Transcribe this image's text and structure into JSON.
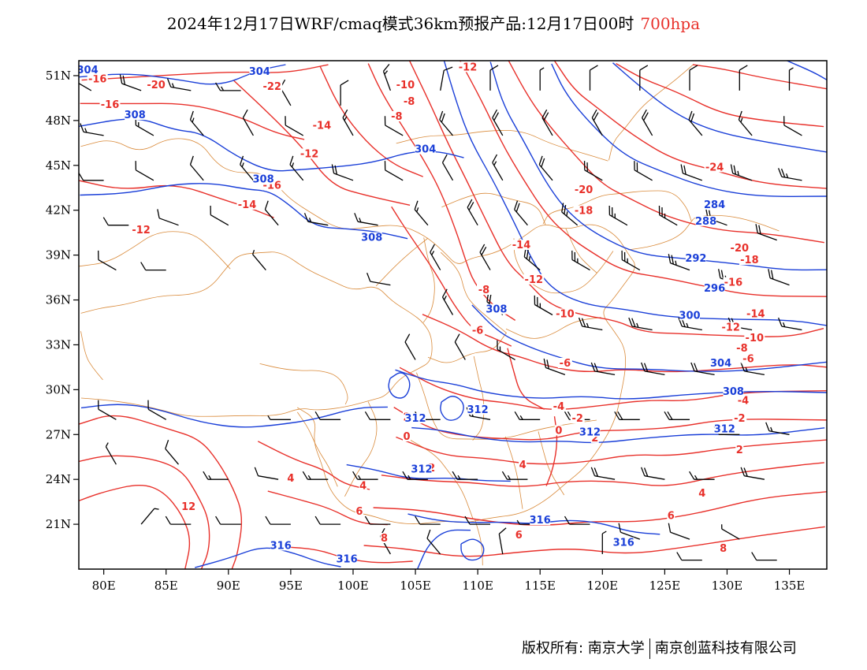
{
  "title": {
    "main": "2024年12月17日WRF/cmaq模式36km预报产品:12月17日00时",
    "level": "700hpa",
    "level_color": "#e8302a"
  },
  "map": {
    "lon_range": [
      78,
      138
    ],
    "lat_range": [
      18,
      52
    ],
    "lon_ticks": [
      "80E",
      "85E",
      "90E",
      "95E",
      "100E",
      "105E",
      "110E",
      "115E",
      "120E",
      "125E",
      "130E",
      "135E"
    ],
    "lat_ticks": [
      "21N",
      "24N",
      "27N",
      "30N",
      "33N",
      "36N",
      "39N",
      "42N",
      "45N",
      "48N",
      "51N"
    ],
    "temperature_color": "#e8302a",
    "height_color": "#1a3fd8",
    "boundary_color": "#d98a3a",
    "wind_barb_color": "#000000",
    "temperature_labels": [
      {
        "text": "-16",
        "lon": 79.5,
        "lat": 50.6
      },
      {
        "text": "-20",
        "lon": 84.2,
        "lat": 50.2
      },
      {
        "text": "-22",
        "lon": 93.5,
        "lat": 50.1
      },
      {
        "text": "-12",
        "lon": 109.2,
        "lat": 51.4
      },
      {
        "text": "-10",
        "lon": 104.2,
        "lat": 50.2
      },
      {
        "text": "-8",
        "lon": 104.5,
        "lat": 49.1
      },
      {
        "text": "-8",
        "lon": 103.5,
        "lat": 48.1
      },
      {
        "text": "-16",
        "lon": 80.5,
        "lat": 48.9
      },
      {
        "text": "-14",
        "lon": 97.5,
        "lat": 47.5
      },
      {
        "text": "-12",
        "lon": 96.5,
        "lat": 45.6
      },
      {
        "text": "-16",
        "lon": 93.5,
        "lat": 43.5
      },
      {
        "text": "-14",
        "lon": 91.5,
        "lat": 42.2
      },
      {
        "text": "-12",
        "lon": 83,
        "lat": 40.5
      },
      {
        "text": "-24",
        "lon": 129,
        "lat": 44.7
      },
      {
        "text": "-20",
        "lon": 118.5,
        "lat": 43.2
      },
      {
        "text": "-18",
        "lon": 118.5,
        "lat": 41.8
      },
      {
        "text": "-14",
        "lon": 113.5,
        "lat": 39.5
      },
      {
        "text": "-12",
        "lon": 114.5,
        "lat": 37.2
      },
      {
        "text": "-8",
        "lon": 110.5,
        "lat": 36.5
      },
      {
        "text": "-6",
        "lon": 110,
        "lat": 33.8
      },
      {
        "text": "-10",
        "lon": 117,
        "lat": 34.9
      },
      {
        "text": "-6",
        "lon": 117,
        "lat": 31.6
      },
      {
        "text": "-20",
        "lon": 131,
        "lat": 39.3
      },
      {
        "text": "-18",
        "lon": 131.8,
        "lat": 38.5
      },
      {
        "text": "-16",
        "lon": 130.5,
        "lat": 37.0
      },
      {
        "text": "-14",
        "lon": 132.3,
        "lat": 34.9
      },
      {
        "text": "-12",
        "lon": 130.3,
        "lat": 34.0
      },
      {
        "text": "-10",
        "lon": 132.2,
        "lat": 33.3
      },
      {
        "text": "-8",
        "lon": 131.2,
        "lat": 32.6
      },
      {
        "text": "-6",
        "lon": 131.7,
        "lat": 31.9
      },
      {
        "text": "-4",
        "lon": 131.3,
        "lat": 29.1
      },
      {
        "text": "-4",
        "lon": 116.5,
        "lat": 28.7
      },
      {
        "text": "-2",
        "lon": 118,
        "lat": 27.9
      },
      {
        "text": "-2",
        "lon": 131,
        "lat": 27.9
      },
      {
        "text": "0",
        "lon": 116.5,
        "lat": 27.1
      },
      {
        "text": "0",
        "lon": 104.3,
        "lat": 26.7
      },
      {
        "text": "2",
        "lon": 104.3,
        "lat": 28.0
      },
      {
        "text": "2",
        "lon": 119.4,
        "lat": 26.6
      },
      {
        "text": "2",
        "lon": 131,
        "lat": 25.8
      },
      {
        "text": "2",
        "lon": 106.3,
        "lat": 24.6
      },
      {
        "text": "4",
        "lon": 113.6,
        "lat": 24.8
      },
      {
        "text": "4",
        "lon": 100.8,
        "lat": 23.4
      },
      {
        "text": "4",
        "lon": 95,
        "lat": 23.9
      },
      {
        "text": "4",
        "lon": 128,
        "lat": 22.9
      },
      {
        "text": "6",
        "lon": 100.5,
        "lat": 21.7
      },
      {
        "text": "6",
        "lon": 125.5,
        "lat": 21.4
      },
      {
        "text": "6",
        "lon": 113.3,
        "lat": 20.1
      },
      {
        "text": "8",
        "lon": 102.5,
        "lat": 19.9
      },
      {
        "text": "8",
        "lon": 129.7,
        "lat": 19.2
      },
      {
        "text": "12",
        "lon": 86.8,
        "lat": 22.0
      }
    ],
    "height_labels": [
      {
        "text": "304",
        "lon": 78.7,
        "lat": 51.2
      },
      {
        "text": "304",
        "lon": 92.5,
        "lat": 51.1
      },
      {
        "text": "308",
        "lon": 82.5,
        "lat": 48.2
      },
      {
        "text": "304",
        "lon": 105.8,
        "lat": 45.9
      },
      {
        "text": "308",
        "lon": 92.8,
        "lat": 43.9
      },
      {
        "text": "308",
        "lon": 101.5,
        "lat": 40.0
      },
      {
        "text": "284",
        "lon": 129,
        "lat": 42.2
      },
      {
        "text": "288",
        "lon": 128.3,
        "lat": 41.1
      },
      {
        "text": "292",
        "lon": 127.5,
        "lat": 38.6
      },
      {
        "text": "296",
        "lon": 129,
        "lat": 36.6
      },
      {
        "text": "300",
        "lon": 127,
        "lat": 34.8
      },
      {
        "text": "304",
        "lon": 129.5,
        "lat": 31.6
      },
      {
        "text": "308",
        "lon": 111.5,
        "lat": 35.2
      },
      {
        "text": "308",
        "lon": 130.5,
        "lat": 29.7
      },
      {
        "text": "312",
        "lon": 129.8,
        "lat": 27.2
      },
      {
        "text": "312",
        "lon": 119,
        "lat": 27.0
      },
      {
        "text": "312",
        "lon": 105,
        "lat": 27.9
      },
      {
        "text": "312",
        "lon": 110,
        "lat": 28.5
      },
      {
        "text": "312",
        "lon": 105.5,
        "lat": 24.5
      },
      {
        "text": "316",
        "lon": 115,
        "lat": 21.1
      },
      {
        "text": "316",
        "lon": 94.2,
        "lat": 19.4
      },
      {
        "text": "316",
        "lon": 121.7,
        "lat": 19.6
      },
      {
        "text": "316",
        "lon": 99.5,
        "lat": 18.5
      }
    ],
    "wind_barbs": [
      {
        "lon": 79,
        "lat": 50,
        "deg": 300,
        "speed": 20
      },
      {
        "lon": 83,
        "lat": 50,
        "deg": 290,
        "speed": 20
      },
      {
        "lon": 87,
        "lat": 50,
        "deg": 280,
        "speed": 15
      },
      {
        "lon": 91,
        "lat": 50,
        "deg": 270,
        "speed": 15
      },
      {
        "lon": 95,
        "lat": 49,
        "deg": 330,
        "speed": 10
      },
      {
        "lon": 99,
        "lat": 49,
        "deg": 0,
        "speed": 10
      },
      {
        "lon": 103,
        "lat": 50,
        "deg": 340,
        "speed": 15
      },
      {
        "lon": 107,
        "lat": 50,
        "deg": 10,
        "speed": 10
      },
      {
        "lon": 111,
        "lat": 50,
        "deg": 0,
        "speed": 10
      },
      {
        "lon": 115,
        "lat": 50,
        "deg": 0,
        "speed": 5
      },
      {
        "lon": 119,
        "lat": 50,
        "deg": 0,
        "speed": 10
      },
      {
        "lon": 123,
        "lat": 50,
        "deg": 0,
        "speed": 10
      },
      {
        "lon": 127,
        "lat": 50,
        "deg": 0,
        "speed": 10
      },
      {
        "lon": 131,
        "lat": 50,
        "deg": 0,
        "speed": 10
      },
      {
        "lon": 135,
        "lat": 50,
        "deg": 0,
        "speed": 5
      },
      {
        "lon": 80,
        "lat": 47,
        "deg": 280,
        "speed": 15
      },
      {
        "lon": 84,
        "lat": 47,
        "deg": 300,
        "speed": 15
      },
      {
        "lon": 88,
        "lat": 47,
        "deg": 320,
        "speed": 15
      },
      {
        "lon": 92,
        "lat": 47,
        "deg": 330,
        "speed": 10
      },
      {
        "lon": 96,
        "lat": 47,
        "deg": 300,
        "speed": 10
      },
      {
        "lon": 100,
        "lat": 47,
        "deg": 330,
        "speed": 15
      },
      {
        "lon": 104,
        "lat": 47,
        "deg": 300,
        "speed": 10
      },
      {
        "lon": 108,
        "lat": 47,
        "deg": 320,
        "speed": 20
      },
      {
        "lon": 112,
        "lat": 47,
        "deg": 330,
        "speed": 20
      },
      {
        "lon": 116,
        "lat": 47,
        "deg": 330,
        "speed": 20
      },
      {
        "lon": 120,
        "lat": 47,
        "deg": 330,
        "speed": 20
      },
      {
        "lon": 124,
        "lat": 47,
        "deg": 330,
        "speed": 20
      },
      {
        "lon": 128,
        "lat": 47,
        "deg": 320,
        "speed": 20
      },
      {
        "lon": 132,
        "lat": 47,
        "deg": 320,
        "speed": 15
      },
      {
        "lon": 136,
        "lat": 47,
        "deg": 300,
        "speed": 10
      },
      {
        "lon": 80,
        "lat": 44,
        "deg": 270,
        "speed": 10
      },
      {
        "lon": 84,
        "lat": 44,
        "deg": 300,
        "speed": 10
      },
      {
        "lon": 88,
        "lat": 44,
        "deg": 320,
        "speed": 10
      },
      {
        "lon": 92,
        "lat": 44,
        "deg": 320,
        "speed": 15
      },
      {
        "lon": 96,
        "lat": 44,
        "deg": 320,
        "speed": 15
      },
      {
        "lon": 100,
        "lat": 44,
        "deg": 290,
        "speed": 20
      },
      {
        "lon": 104,
        "lat": 44,
        "deg": 300,
        "speed": 10
      },
      {
        "lon": 108,
        "lat": 44,
        "deg": 330,
        "speed": 10
      },
      {
        "lon": 112,
        "lat": 44,
        "deg": 330,
        "speed": 15
      },
      {
        "lon": 116,
        "lat": 44,
        "deg": 320,
        "speed": 20
      },
      {
        "lon": 120,
        "lat": 44,
        "deg": 300,
        "speed": 20
      },
      {
        "lon": 124,
        "lat": 44,
        "deg": 300,
        "speed": 20
      },
      {
        "lon": 128,
        "lat": 44,
        "deg": 290,
        "speed": 20
      },
      {
        "lon": 132,
        "lat": 44,
        "deg": 290,
        "speed": 25
      },
      {
        "lon": 136,
        "lat": 44,
        "deg": 280,
        "speed": 25
      },
      {
        "lon": 82,
        "lat": 41,
        "deg": 270,
        "speed": 10
      },
      {
        "lon": 86,
        "lat": 41,
        "deg": 290,
        "speed": 10
      },
      {
        "lon": 90,
        "lat": 41,
        "deg": 300,
        "speed": 10
      },
      {
        "lon": 94,
        "lat": 41,
        "deg": 320,
        "speed": 10
      },
      {
        "lon": 98,
        "lat": 41,
        "deg": 280,
        "speed": 15
      },
      {
        "lon": 102,
        "lat": 41,
        "deg": 280,
        "speed": 15
      },
      {
        "lon": 106,
        "lat": 41,
        "deg": 320,
        "speed": 15
      },
      {
        "lon": 110,
        "lat": 41,
        "deg": 330,
        "speed": 20
      },
      {
        "lon": 114,
        "lat": 41,
        "deg": 320,
        "speed": 20
      },
      {
        "lon": 118,
        "lat": 41,
        "deg": 310,
        "speed": 25
      },
      {
        "lon": 122,
        "lat": 41,
        "deg": 300,
        "speed": 25
      },
      {
        "lon": 126,
        "lat": 41,
        "deg": 300,
        "speed": 25
      },
      {
        "lon": 130,
        "lat": 41,
        "deg": 290,
        "speed": 25
      },
      {
        "lon": 134,
        "lat": 40,
        "deg": 290,
        "speed": 20
      },
      {
        "lon": 81,
        "lat": 38,
        "deg": 300,
        "speed": 10
      },
      {
        "lon": 85,
        "lat": 38,
        "deg": 270,
        "speed": 10
      },
      {
        "lon": 93,
        "lat": 38,
        "deg": 320,
        "speed": 5
      },
      {
        "lon": 103,
        "lat": 37,
        "deg": 280,
        "speed": 10
      },
      {
        "lon": 107,
        "lat": 38,
        "deg": 330,
        "speed": 15
      },
      {
        "lon": 111,
        "lat": 38,
        "deg": 330,
        "speed": 20
      },
      {
        "lon": 115,
        "lat": 38,
        "deg": 310,
        "speed": 25
      },
      {
        "lon": 119,
        "lat": 38,
        "deg": 300,
        "speed": 25
      },
      {
        "lon": 123,
        "lat": 38,
        "deg": 300,
        "speed": 25
      },
      {
        "lon": 127,
        "lat": 38,
        "deg": 290,
        "speed": 25
      },
      {
        "lon": 131,
        "lat": 37,
        "deg": 290,
        "speed": 25
      },
      {
        "lon": 135,
        "lat": 37,
        "deg": 290,
        "speed": 20
      },
      {
        "lon": 108,
        "lat": 35,
        "deg": 330,
        "speed": 15
      },
      {
        "lon": 112,
        "lat": 35,
        "deg": 310,
        "speed": 20
      },
      {
        "lon": 116,
        "lat": 35,
        "deg": 300,
        "speed": 25
      },
      {
        "lon": 120,
        "lat": 34,
        "deg": 280,
        "speed": 25
      },
      {
        "lon": 124,
        "lat": 34,
        "deg": 280,
        "speed": 25
      },
      {
        "lon": 128,
        "lat": 34,
        "deg": 280,
        "speed": 25
      },
      {
        "lon": 132,
        "lat": 34,
        "deg": 280,
        "speed": 20
      },
      {
        "lon": 136,
        "lat": 34,
        "deg": 280,
        "speed": 15
      },
      {
        "lon": 105,
        "lat": 32,
        "deg": 330,
        "speed": 10
      },
      {
        "lon": 109,
        "lat": 32,
        "deg": 330,
        "speed": 10
      },
      {
        "lon": 113,
        "lat": 32,
        "deg": 300,
        "speed": 15
      },
      {
        "lon": 117,
        "lat": 31,
        "deg": 290,
        "speed": 20
      },
      {
        "lon": 121,
        "lat": 31,
        "deg": 280,
        "speed": 20
      },
      {
        "lon": 125,
        "lat": 31,
        "deg": 280,
        "speed": 20
      },
      {
        "lon": 129,
        "lat": 31,
        "deg": 280,
        "speed": 20
      },
      {
        "lon": 133,
        "lat": 31,
        "deg": 280,
        "speed": 15
      },
      {
        "lon": 81,
        "lat": 28,
        "deg": 300,
        "speed": 10
      },
      {
        "lon": 85,
        "lat": 28,
        "deg": 300,
        "speed": 10
      },
      {
        "lon": 95,
        "lat": 28,
        "deg": 270,
        "speed": 5
      },
      {
        "lon": 99,
        "lat": 28,
        "deg": 270,
        "speed": 10
      },
      {
        "lon": 103,
        "lat": 28,
        "deg": 270,
        "speed": 10
      },
      {
        "lon": 107,
        "lat": 28,
        "deg": 270,
        "speed": 10
      },
      {
        "lon": 111,
        "lat": 28,
        "deg": 280,
        "speed": 15
      },
      {
        "lon": 115,
        "lat": 28,
        "deg": 270,
        "speed": 15
      },
      {
        "lon": 119,
        "lat": 28,
        "deg": 270,
        "speed": 20
      },
      {
        "lon": 123,
        "lat": 28,
        "deg": 270,
        "speed": 20
      },
      {
        "lon": 127,
        "lat": 28,
        "deg": 270,
        "speed": 20
      },
      {
        "lon": 131,
        "lat": 27,
        "deg": 270,
        "speed": 20
      },
      {
        "lon": 135,
        "lat": 27,
        "deg": 280,
        "speed": 15
      },
      {
        "lon": 81,
        "lat": 25,
        "deg": 330,
        "speed": 5
      },
      {
        "lon": 86,
        "lat": 25,
        "deg": 320,
        "speed": 10
      },
      {
        "lon": 90,
        "lat": 24,
        "deg": 270,
        "speed": 15
      },
      {
        "lon": 94,
        "lat": 24,
        "deg": 280,
        "speed": 10
      },
      {
        "lon": 98,
        "lat": 24,
        "deg": 270,
        "speed": 15
      },
      {
        "lon": 102,
        "lat": 24,
        "deg": 270,
        "speed": 15
      },
      {
        "lon": 106,
        "lat": 24,
        "deg": 270,
        "speed": 15
      },
      {
        "lon": 110,
        "lat": 24,
        "deg": 270,
        "speed": 15
      },
      {
        "lon": 114,
        "lat": 24,
        "deg": 270,
        "speed": 15
      },
      {
        "lon": 121,
        "lat": 24,
        "deg": 280,
        "speed": 20
      },
      {
        "lon": 125,
        "lat": 24,
        "deg": 280,
        "speed": 20
      },
      {
        "lon": 129,
        "lat": 24,
        "deg": 270,
        "speed": 15
      },
      {
        "lon": 133,
        "lat": 24,
        "deg": 280,
        "speed": 20
      },
      {
        "lon": 83,
        "lat": 21,
        "deg": 40,
        "speed": 5
      },
      {
        "lon": 87,
        "lat": 21,
        "deg": 270,
        "speed": 10
      },
      {
        "lon": 91,
        "lat": 21,
        "deg": 270,
        "speed": 10
      },
      {
        "lon": 95,
        "lat": 21,
        "deg": 270,
        "speed": 10
      },
      {
        "lon": 99,
        "lat": 21,
        "deg": 270,
        "speed": 10
      },
      {
        "lon": 103,
        "lat": 21,
        "deg": 270,
        "speed": 10
      },
      {
        "lon": 107,
        "lat": 21,
        "deg": 270,
        "speed": 10
      },
      {
        "lon": 111,
        "lat": 21,
        "deg": 270,
        "speed": 10
      },
      {
        "lon": 115,
        "lat": 21,
        "deg": 270,
        "speed": 5
      },
      {
        "lon": 119,
        "lat": 21,
        "deg": 270,
        "speed": 10
      },
      {
        "lon": 123,
        "lat": 20,
        "deg": 290,
        "speed": 10
      },
      {
        "lon": 127,
        "lat": 20,
        "deg": 290,
        "speed": 10
      },
      {
        "lon": 131,
        "lat": 20,
        "deg": 300,
        "speed": 5
      },
      {
        "lon": 103,
        "lat": 19,
        "deg": 330,
        "speed": 10
      },
      {
        "lon": 107,
        "lat": 19,
        "deg": 320,
        "speed": 10
      },
      {
        "lon": 112,
        "lat": 19,
        "deg": 350,
        "speed": 10
      },
      {
        "lon": 120,
        "lat": 19,
        "deg": 0,
        "speed": 5
      },
      {
        "lon": 128,
        "lat": 18.6,
        "deg": 270,
        "speed": 10
      },
      {
        "lon": 134,
        "lat": 18.6,
        "deg": 270,
        "speed": 10
      }
    ]
  },
  "footer": {
    "copyright": "版权所有: 南京大学",
    "company": "南京创蓝科技有限公司"
  }
}
